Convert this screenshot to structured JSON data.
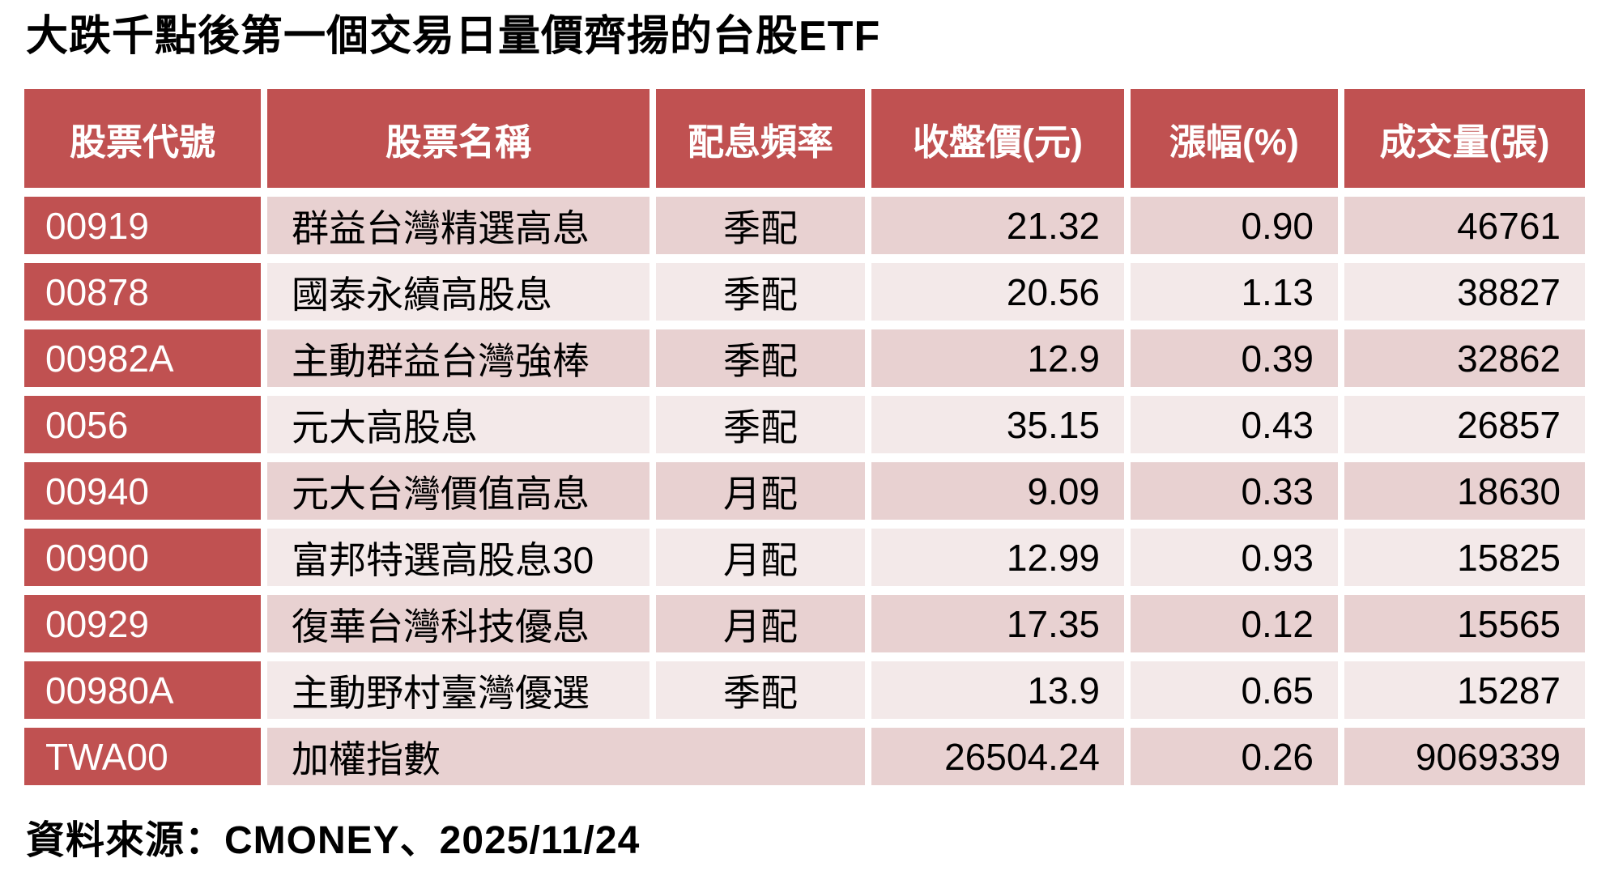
{
  "title": "大跌千點後第一個交易日量價齊揚的台股ETF",
  "source_note": "資料來源：CMONEY、2025/11/24",
  "colors": {
    "header_bg": "#c05151",
    "row_odd_bg": "#e8d1d1",
    "row_even_bg": "#f3e9e9",
    "header_text": "#ffffff",
    "body_text": "#000000",
    "background": "#ffffff"
  },
  "table": {
    "columns": [
      {
        "key": "code",
        "label": "股票代號"
      },
      {
        "key": "name",
        "label": "股票名稱"
      },
      {
        "key": "freq",
        "label": "配息頻率"
      },
      {
        "key": "price",
        "label": "收盤價(元)"
      },
      {
        "key": "change",
        "label": "漲幅(%)"
      },
      {
        "key": "volume",
        "label": "成交量(張)"
      }
    ],
    "rows": [
      {
        "code": "00919",
        "name": "群益台灣精選高息",
        "freq": "季配",
        "price": "21.32",
        "change": "0.90",
        "volume": "46761"
      },
      {
        "code": "00878",
        "name": "國泰永續高股息",
        "freq": "季配",
        "price": "20.56",
        "change": "1.13",
        "volume": "38827"
      },
      {
        "code": "00982A",
        "name": "主動群益台灣強棒",
        "freq": "季配",
        "price": "12.9",
        "change": "0.39",
        "volume": "32862"
      },
      {
        "code": "0056",
        "name": "元大高股息",
        "freq": "季配",
        "price": "35.15",
        "change": "0.43",
        "volume": "26857"
      },
      {
        "code": "00940",
        "name": "元大台灣價值高息",
        "freq": "月配",
        "price": "9.09",
        "change": "0.33",
        "volume": "18630"
      },
      {
        "code": "00900",
        "name": "富邦特選高股息30",
        "freq": "月配",
        "price": "12.99",
        "change": "0.93",
        "volume": "15825"
      },
      {
        "code": "00929",
        "name": "復華台灣科技優息",
        "freq": "月配",
        "price": "17.35",
        "change": "0.12",
        "volume": "15565"
      },
      {
        "code": "00980A",
        "name": "主動野村臺灣優選",
        "freq": "季配",
        "price": "13.9",
        "change": "0.65",
        "volume": "15287"
      },
      {
        "code": "TWA00",
        "name": "加權指數",
        "freq": "",
        "price": "26504.24",
        "change": "0.26",
        "volume": "9069339",
        "merge_name_freq": true
      }
    ]
  },
  "chart_data": {
    "type": "table",
    "title": "大跌千點後第一個交易日量價齊揚的台股ETF",
    "columns": [
      "股票代號",
      "股票名稱",
      "配息頻率",
      "收盤價(元)",
      "漲幅(%)",
      "成交量(張)"
    ],
    "rows": [
      [
        "00919",
        "群益台灣精選高息",
        "季配",
        21.32,
        0.9,
        46761
      ],
      [
        "00878",
        "國泰永續高股息",
        "季配",
        20.56,
        1.13,
        38827
      ],
      [
        "00982A",
        "主動群益台灣強棒",
        "季配",
        12.9,
        0.39,
        32862
      ],
      [
        "0056",
        "元大高股息",
        "季配",
        35.15,
        0.43,
        26857
      ],
      [
        "00940",
        "元大台灣價值高息",
        "月配",
        9.09,
        0.33,
        18630
      ],
      [
        "00900",
        "富邦特選高股息30",
        "月配",
        12.99,
        0.93,
        15825
      ],
      [
        "00929",
        "復華台灣科技優息",
        "月配",
        17.35,
        0.12,
        15565
      ],
      [
        "00980A",
        "主動野村臺灣優選",
        "季配",
        13.9,
        0.65,
        15287
      ],
      [
        "TWA00",
        "加權指數",
        "",
        26504.24,
        0.26,
        9069339
      ]
    ],
    "source": "資料來源：CMONEY、2025/11/24"
  }
}
